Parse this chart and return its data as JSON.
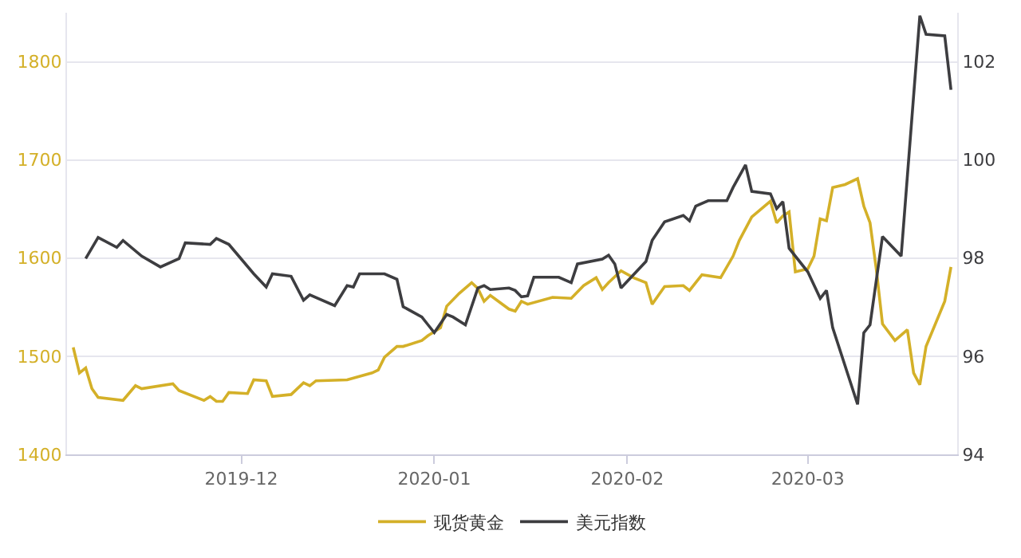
{
  "chart_data": {
    "type": "line",
    "xlim": [
      "2019-11-03",
      "2020-03-25"
    ],
    "xticks": [
      "2019-12",
      "2020-01",
      "2020-02",
      "2020-03"
    ],
    "ylim": [
      1400,
      1850
    ],
    "yticks": [
      1400,
      1500,
      1600,
      1700,
      1800
    ],
    "y2lim": [
      94,
      103
    ],
    "y2ticks": [
      94,
      96,
      98,
      100,
      102
    ],
    "grid": "y",
    "legend": "bottom",
    "series": [
      {
        "name": "现货黄金",
        "color": "#d4b028",
        "x": [
          "2019-11-04",
          "2019-11-05",
          "2019-11-06",
          "2019-11-07",
          "2019-11-08",
          "2019-11-12",
          "2019-11-14",
          "2019-11-15",
          "2019-11-20",
          "2019-11-21",
          "2019-11-25",
          "2019-11-26",
          "2019-11-27",
          "2019-11-28",
          "2019-11-29",
          "2019-12-02",
          "2019-12-03",
          "2019-12-05",
          "2019-12-06",
          "2019-12-09",
          "2019-12-11",
          "2019-12-12",
          "2019-12-13",
          "2019-12-18",
          "2019-12-22",
          "2019-12-23",
          "2019-12-24",
          "2019-12-26",
          "2019-12-27",
          "2019-12-30",
          "2019-12-31",
          "2020-01-02",
          "2020-01-03",
          "2020-01-05",
          "2020-01-07",
          "2020-01-08",
          "2020-01-09",
          "2020-01-10",
          "2020-01-13",
          "2020-01-14",
          "2020-01-15",
          "2020-01-16",
          "2020-01-20",
          "2020-01-23",
          "2020-01-25",
          "2020-01-27",
          "2020-01-28",
          "2020-01-29",
          "2020-01-31",
          "2020-02-02",
          "2020-02-04",
          "2020-02-05",
          "2020-02-06",
          "2020-02-07",
          "2020-02-10",
          "2020-02-11",
          "2020-02-13",
          "2020-02-16",
          "2020-02-18",
          "2020-02-19",
          "2020-02-21",
          "2020-02-24",
          "2020-02-25",
          "2020-02-26",
          "2020-02-27",
          "2020-02-28",
          "2020-03-01",
          "2020-03-02",
          "2020-03-03",
          "2020-03-04",
          "2020-03-05",
          "2020-03-07",
          "2020-03-09",
          "2020-03-10",
          "2020-03-11",
          "2020-03-12",
          "2020-03-13",
          "2020-03-15",
          "2020-03-17",
          "2020-03-18",
          "2020-03-19",
          "2020-03-20",
          "2020-03-23",
          "2020-03-24"
        ],
        "values": [
          1509,
          1483,
          1488,
          1467,
          1458,
          1455,
          1470,
          1467,
          1472,
          1465,
          1455,
          1459,
          1454,
          1454,
          1463,
          1462,
          1476,
          1475,
          1459,
          1461,
          1473,
          1470,
          1475,
          1476,
          1483,
          1486,
          1499,
          1510,
          1510,
          1516,
          1521,
          1529,
          1551,
          1564,
          1575,
          1569,
          1556,
          1562,
          1548,
          1546,
          1556,
          1553,
          1560,
          1559,
          1572,
          1580,
          1568,
          1575,
          1587,
          1580,
          1575,
          1553,
          1562,
          1571,
          1572,
          1567,
          1583,
          1580,
          1602,
          1618,
          1642,
          1658,
          1636,
          1643,
          1647,
          1586,
          1589,
          1602,
          1640,
          1638,
          1672,
          1675,
          1681,
          1653,
          1636,
          1589,
          1533,
          1516,
          1527,
          1483,
          1471,
          1510,
          1556,
          1591
        ]
      },
      {
        "name": "美元指数",
        "color": "#3d3d40",
        "axis": "y2",
        "x": [
          "2019-11-06",
          "2019-11-08",
          "2019-11-11",
          "2019-11-12",
          "2019-11-15",
          "2019-11-18",
          "2019-11-21",
          "2019-11-22",
          "2019-11-26",
          "2019-11-27",
          "2019-11-29",
          "2019-12-03",
          "2019-12-05",
          "2019-12-06",
          "2019-12-09",
          "2019-12-11",
          "2019-12-12",
          "2019-12-16",
          "2019-12-18",
          "2019-12-19",
          "2019-12-20",
          "2019-12-24",
          "2019-12-26",
          "2019-12-27",
          "2019-12-30",
          "2019-12-31",
          "2020-01-01",
          "2020-01-03",
          "2020-01-04",
          "2020-01-06",
          "2020-01-08",
          "2020-01-09",
          "2020-01-10",
          "2020-01-13",
          "2020-01-14",
          "2020-01-15",
          "2020-01-16",
          "2020-01-17",
          "2020-01-21",
          "2020-01-23",
          "2020-01-24",
          "2020-01-28",
          "2020-01-29",
          "2020-01-30",
          "2020-01-31",
          "2020-02-04",
          "2020-02-05",
          "2020-02-07",
          "2020-02-10",
          "2020-02-11",
          "2020-02-12",
          "2020-02-14",
          "2020-02-17",
          "2020-02-18",
          "2020-02-20",
          "2020-02-21",
          "2020-02-24",
          "2020-02-25",
          "2020-02-26",
          "2020-02-27",
          "2020-03-01",
          "2020-03-03",
          "2020-03-04",
          "2020-03-05",
          "2020-03-09",
          "2020-03-10",
          "2020-03-11",
          "2020-03-13",
          "2020-03-16",
          "2020-03-19",
          "2020-03-20",
          "2020-03-23",
          "2020-03-24"
        ],
        "values": [
          97.99,
          98.42,
          98.22,
          98.36,
          98.04,
          97.82,
          97.99,
          98.31,
          98.28,
          98.4,
          98.28,
          97.68,
          97.41,
          97.68,
          97.63,
          97.14,
          97.25,
          97.03,
          97.44,
          97.41,
          97.68,
          97.68,
          97.57,
          97.01,
          96.8,
          96.64,
          96.48,
          96.85,
          96.8,
          96.64,
          97.39,
          97.44,
          97.36,
          97.39,
          97.34,
          97.21,
          97.23,
          97.61,
          97.61,
          97.5,
          97.88,
          97.98,
          98.06,
          97.88,
          97.39,
          97.93,
          98.36,
          98.74,
          98.87,
          98.76,
          99.06,
          99.17,
          99.17,
          99.44,
          99.9,
          99.36,
          99.31,
          99.01,
          99.15,
          98.2,
          97.72,
          97.18,
          97.34,
          96.58,
          95.02,
          96.48,
          96.64,
          98.44,
          98.04,
          102.94,
          102.56,
          102.53,
          101.43
        ]
      }
    ]
  }
}
